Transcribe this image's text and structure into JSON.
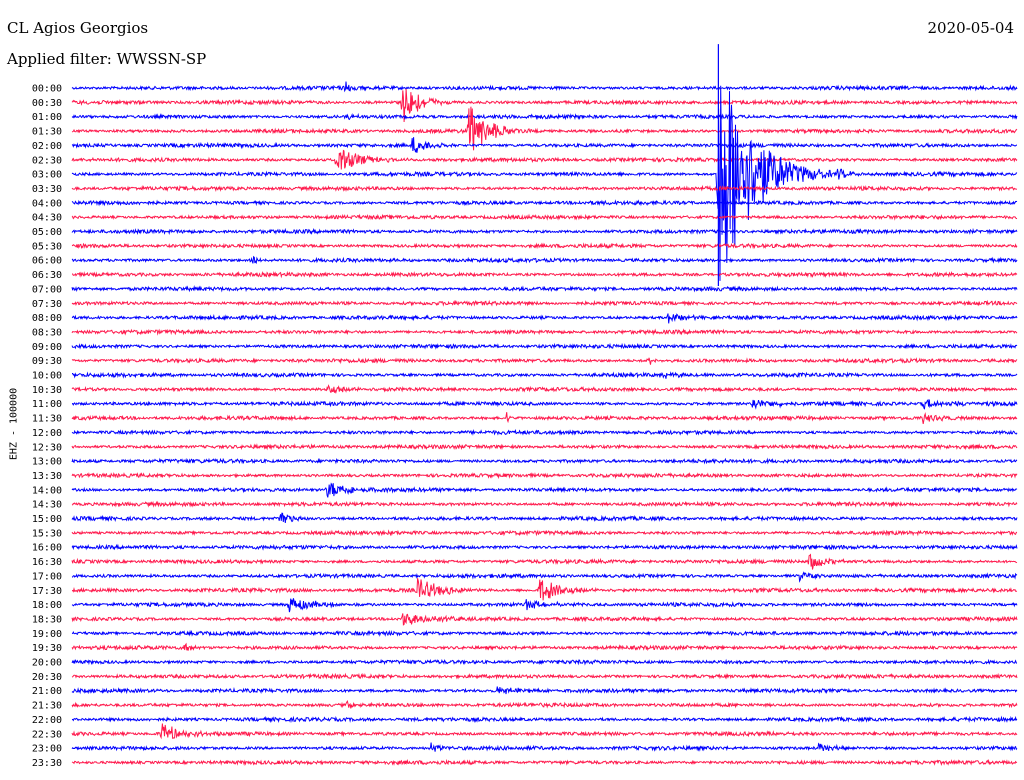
{
  "header": {
    "station": "CL Agios Georgios",
    "filter": "Applied filter: WWSSN-SP",
    "date": "2020-05-04"
  },
  "chart_data": {
    "type": "seismic-helicorder",
    "channel_label": "EHZ - 100000",
    "colors": {
      "even_trace": "#0000ff",
      "odd_trace": "#ff1a4d"
    },
    "row_labels": [
      "00:00",
      "00:30",
      "01:00",
      "01:30",
      "02:00",
      "02:30",
      "03:00",
      "03:30",
      "04:00",
      "04:30",
      "05:00",
      "05:30",
      "06:00",
      "06:30",
      "07:00",
      "07:30",
      "08:00",
      "08:30",
      "09:00",
      "09:30",
      "10:00",
      "10:30",
      "11:00",
      "11:30",
      "12:00",
      "12:30",
      "13:00",
      "13:30",
      "14:00",
      "14:30",
      "15:00",
      "15:30",
      "16:00",
      "16:30",
      "17:00",
      "17:30",
      "18:00",
      "18:30",
      "19:00",
      "19:30",
      "20:00",
      "20:30",
      "21:00",
      "21:30",
      "22:00",
      "22:30",
      "23:00",
      "23:30"
    ],
    "events": [
      {
        "row": 0,
        "pos": 0.29,
        "amp": 7,
        "dur": 0.005
      },
      {
        "row": 1,
        "pos": 0.35,
        "amp": 24,
        "dur": 0.02
      },
      {
        "row": 2,
        "pos": 0.29,
        "amp": 4,
        "dur": 0.01
      },
      {
        "row": 3,
        "pos": 0.42,
        "amp": 28,
        "dur": 0.025
      },
      {
        "row": 4,
        "pos": 0.36,
        "amp": 9,
        "dur": 0.02
      },
      {
        "row": 5,
        "pos": 0.28,
        "amp": 14,
        "dur": 0.03
      },
      {
        "row": 6,
        "pos": 0.684,
        "amp": 130,
        "dur": 0.04
      },
      {
        "row": 6,
        "pos": 0.81,
        "amp": 6,
        "dur": 0.015
      },
      {
        "row": 12,
        "pos": 0.19,
        "amp": 8,
        "dur": 0.005
      },
      {
        "row": 16,
        "pos": 0.63,
        "amp": 6,
        "dur": 0.02
      },
      {
        "row": 19,
        "pos": 0.61,
        "amp": 6,
        "dur": 0.01
      },
      {
        "row": 20,
        "pos": 0.62,
        "amp": 5,
        "dur": 0.015
      },
      {
        "row": 21,
        "pos": 0.27,
        "amp": 6,
        "dur": 0.02
      },
      {
        "row": 22,
        "pos": 0.72,
        "amp": 6,
        "dur": 0.03
      },
      {
        "row": 22,
        "pos": 0.9,
        "amp": 5,
        "dur": 0.03
      },
      {
        "row": 23,
        "pos": 0.46,
        "amp": 6,
        "dur": 0.005
      },
      {
        "row": 23,
        "pos": 0.9,
        "amp": 5,
        "dur": 0.02
      },
      {
        "row": 28,
        "pos": 0.27,
        "amp": 9,
        "dur": 0.03
      },
      {
        "row": 30,
        "pos": 0.22,
        "amp": 9,
        "dur": 0.015
      },
      {
        "row": 33,
        "pos": 0.78,
        "amp": 9,
        "dur": 0.02
      },
      {
        "row": 34,
        "pos": 0.77,
        "amp": 5,
        "dur": 0.015
      },
      {
        "row": 35,
        "pos": 0.365,
        "amp": 12,
        "dur": 0.03
      },
      {
        "row": 35,
        "pos": 0.495,
        "amp": 12,
        "dur": 0.03
      },
      {
        "row": 36,
        "pos": 0.23,
        "amp": 9,
        "dur": 0.03
      },
      {
        "row": 36,
        "pos": 0.48,
        "amp": 5,
        "dur": 0.025
      },
      {
        "row": 37,
        "pos": 0.35,
        "amp": 7,
        "dur": 0.03
      },
      {
        "row": 39,
        "pos": 0.12,
        "amp": 8,
        "dur": 0.005
      },
      {
        "row": 42,
        "pos": 0.45,
        "amp": 4,
        "dur": 0.04
      },
      {
        "row": 43,
        "pos": 0.29,
        "amp": 5,
        "dur": 0.01
      },
      {
        "row": 45,
        "pos": 0.095,
        "amp": 12,
        "dur": 0.02
      },
      {
        "row": 46,
        "pos": 0.38,
        "amp": 6,
        "dur": 0.01
      },
      {
        "row": 46,
        "pos": 0.79,
        "amp": 5,
        "dur": 0.02
      }
    ]
  }
}
